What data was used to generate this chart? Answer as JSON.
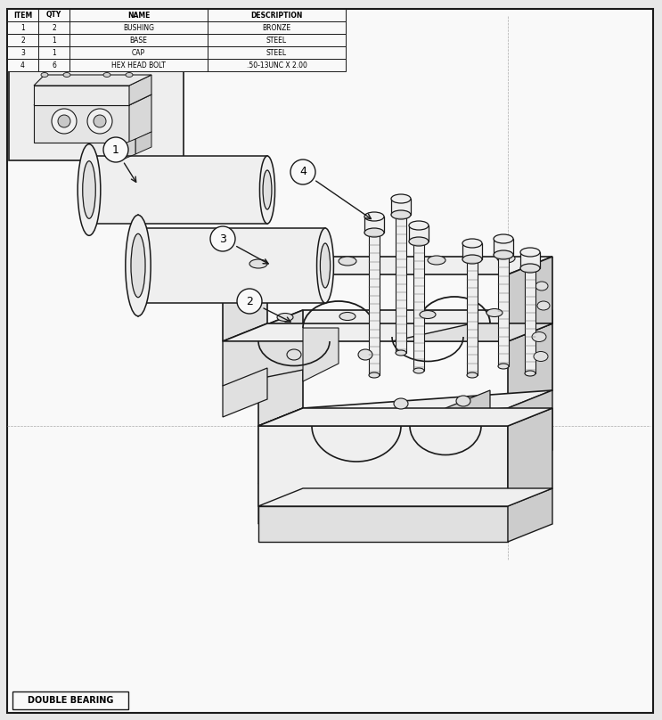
{
  "title": "DOUBLE BEARING",
  "bg_color": "#e8e8e8",
  "drawing_bg": "#f5f5f5",
  "line_color": "#1a1a1a",
  "fill_white": "#f9f9f9",
  "fill_light": "#efefef",
  "fill_mid": "#e0e0e0",
  "fill_dark": "#cccccc",
  "table": {
    "headers": [
      "ITEM",
      "QTY",
      "NAME",
      "DESCRIPTION"
    ],
    "rows": [
      [
        "1",
        "2",
        "BUSHING",
        "BRONZE"
      ],
      [
        "2",
        "1",
        "BASE",
        "STEEL"
      ],
      [
        "3",
        "1",
        "CAP",
        "STEEL"
      ],
      [
        "4",
        "6",
        "HEX HEAD BOLT",
        ".50-13UNC X 2.00"
      ]
    ]
  }
}
